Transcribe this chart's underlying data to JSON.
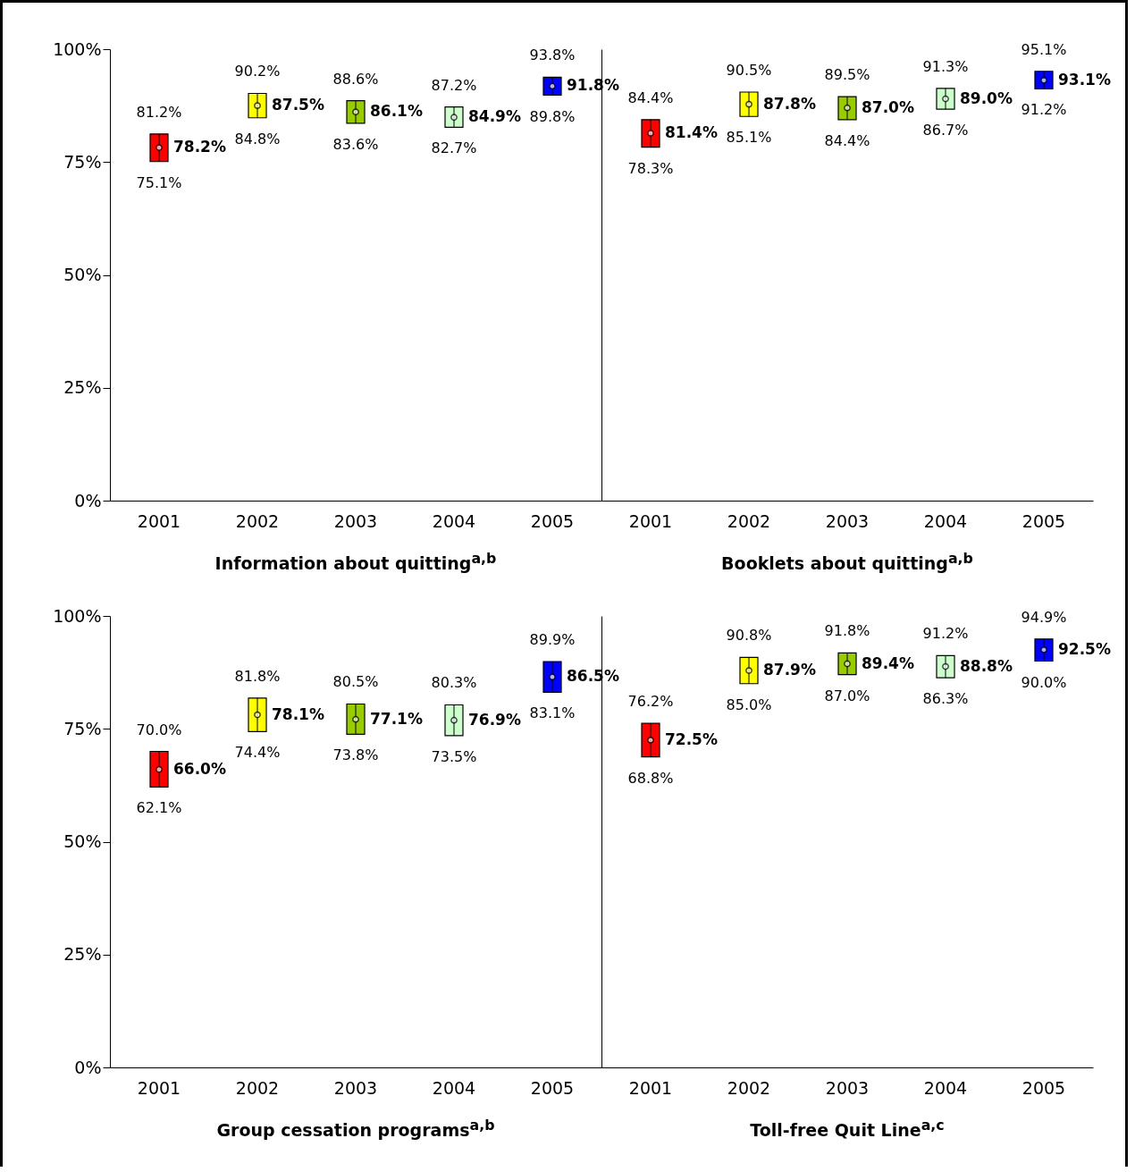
{
  "chart_data": [
    {
      "type": "scatter",
      "categories": [
        "2001",
        "2002",
        "2003",
        "2004",
        "2005"
      ],
      "xlabel": "Information about quitting$^{a,b}$",
      "ylim": [
        0,
        100
      ],
      "yticks": [
        {
          "value": 0,
          "label": "0%"
        },
        {
          "value": 25,
          "label": "25%"
        },
        {
          "value": 50,
          "label": "50%"
        },
        {
          "value": 75,
          "label": "75%"
        },
        {
          "value": 100,
          "label": "100%"
        }
      ],
      "grid": false,
      "series": [
        {
          "colors": [
            "#ff0000",
            "#ffff00",
            "#99cc00",
            "#ccffcc",
            "#0000ff"
          ],
          "values": [
            78.2,
            87.5,
            86.1,
            84.9,
            91.8
          ],
          "errors": [
            [
              75.1,
              81.2
            ],
            [
              84.8,
              90.2
            ],
            [
              83.6,
              88.6
            ],
            [
              82.7,
              87.2
            ],
            [
              89.8,
              93.8
            ]
          ],
          "value_labels": [
            "78.2%",
            "87.5%",
            "86.1%",
            "84.9%",
            "91.8%"
          ]
        }
      ],
      "annotations": [
        {
          "text": "81.2%",
          "x": "2001",
          "y": 81.2
        },
        {
          "text": "75.1%",
          "x": "2001",
          "y": 75.1
        },
        {
          "text": "90.2%",
          "x": "2002",
          "y": 90.2
        },
        {
          "text": "84.8%",
          "x": "2002",
          "y": 84.8
        },
        {
          "text": "88.6%",
          "x": "2003",
          "y": 88.6
        },
        {
          "text": "83.6%",
          "x": "2003",
          "y": 83.6
        },
        {
          "text": "87.2%",
          "x": "2004",
          "y": 87.2
        },
        {
          "text": "82.7%",
          "x": "2004",
          "y": 82.7
        },
        {
          "text": "93.8%",
          "x": "2005",
          "y": 93.8
        },
        {
          "text": "89.8%",
          "x": "2005",
          "y": 89.8
        }
      ]
    },
    {
      "type": "scatter",
      "categories": [
        "2001",
        "2002",
        "2003",
        "2004",
        "2005"
      ],
      "xlabel": "Booklets about quitting$^{a,b}$",
      "ylim": [
        0,
        100
      ],
      "tick_labels": "x",
      "grid": false,
      "series": [
        {
          "colors": [
            "#ff0000",
            "#ffff00",
            "#99cc00",
            "#ccffcc",
            "#0000ff"
          ],
          "values": [
            81.4,
            87.8,
            87.0,
            89.0,
            93.1
          ],
          "errors": [
            [
              78.3,
              84.4
            ],
            [
              85.1,
              90.5
            ],
            [
              84.4,
              89.5
            ],
            [
              86.7,
              91.3
            ],
            [
              91.2,
              95.1
            ]
          ],
          "value_labels": [
            "81.4%",
            "87.8%",
            "87.0%",
            "89.0%",
            "93.1%"
          ]
        }
      ],
      "annotations": [
        {
          "text": "84.4%",
          "x": "2001",
          "y": 84.4
        },
        {
          "text": "78.3%",
          "x": "2001",
          "y": 78.3
        },
        {
          "text": "90.5%",
          "x": "2002",
          "y": 90.5
        },
        {
          "text": "85.1%",
          "x": "2002",
          "y": 85.1
        },
        {
          "text": "89.5%",
          "x": "2003",
          "y": 89.5
        },
        {
          "text": "84.4%",
          "x": "2003",
          "y": 84.4
        },
        {
          "text": "91.3%",
          "x": "2004",
          "y": 91.3
        },
        {
          "text": "86.7%",
          "x": "2004",
          "y": 86.7
        },
        {
          "text": "95.1%",
          "x": "2005",
          "y": 95.1
        },
        {
          "text": "91.2%",
          "x": "2005",
          "y": 91.2
        }
      ]
    },
    {
      "type": "scatter",
      "categories": [
        "2001",
        "2002",
        "2003",
        "2004",
        "2005"
      ],
      "xlabel": "Group cessation programs$^{a,b}$",
      "ylim": [
        0,
        100
      ],
      "yticks": [
        {
          "value": 0,
          "label": "0%"
        },
        {
          "value": 25,
          "label": "25%"
        },
        {
          "value": 50,
          "label": "50%"
        },
        {
          "value": 75,
          "label": "75%"
        },
        {
          "value": 100,
          "label": "100%"
        }
      ],
      "grid": false,
      "series": [
        {
          "colors": [
            "#ff0000",
            "#ffff00",
            "#99cc00",
            "#ccffcc",
            "#0000ff"
          ],
          "values": [
            66.0,
            78.1,
            77.1,
            76.9,
            86.5
          ],
          "errors": [
            [
              62.1,
              70.0
            ],
            [
              74.4,
              81.8
            ],
            [
              73.8,
              80.5
            ],
            [
              73.5,
              80.3
            ],
            [
              83.1,
              89.9
            ]
          ],
          "value_labels": [
            "66.0%",
            "78.1%",
            "77.1%",
            "76.9%",
            "86.5%"
          ]
        }
      ],
      "annotations": [
        {
          "text": "70.0%",
          "x": "2001",
          "y": 70.0
        },
        {
          "text": "62.1%",
          "x": "2001",
          "y": 62.1
        },
        {
          "text": "81.8%",
          "x": "2002",
          "y": 81.8
        },
        {
          "text": "74.4%",
          "x": "2002",
          "y": 74.4
        },
        {
          "text": "80.5%",
          "x": "2003",
          "y": 80.5
        },
        {
          "text": "73.8%",
          "x": "2003",
          "y": 73.8
        },
        {
          "text": "80.3%",
          "x": "2004",
          "y": 80.3
        },
        {
          "text": "73.5%",
          "x": "2004",
          "y": 73.5
        },
        {
          "text": "89.9%",
          "x": "2005",
          "y": 89.9
        },
        {
          "text": "83.1%",
          "x": "2005",
          "y": 83.1
        }
      ]
    },
    {
      "type": "scatter",
      "categories": [
        "2001",
        "2002",
        "2003",
        "2004",
        "2005"
      ],
      "xlabel": "Toll-free Quit Line$^{a,c}$",
      "ylim": [
        0,
        100
      ],
      "tick_labels": "x",
      "grid": false,
      "series": [
        {
          "colors": [
            "#ff0000",
            "#ffff00",
            "#99cc00",
            "#ccffcc",
            "#0000ff"
          ],
          "values": [
            72.5,
            87.9,
            89.4,
            88.8,
            92.5
          ],
          "errors": [
            [
              68.8,
              76.2
            ],
            [
              85.0,
              90.8
            ],
            [
              87.0,
              91.8
            ],
            [
              86.3,
              91.2
            ],
            [
              90.0,
              94.9
            ]
          ],
          "value_labels": [
            "72.5%",
            "87.9%",
            "89.4%",
            "88.8%",
            "92.5%"
          ]
        }
      ],
      "annotations": [
        {
          "text": "76.2%",
          "x": "2001",
          "y": 76.2
        },
        {
          "text": "68.8%",
          "x": "2001",
          "y": 68.8
        },
        {
          "text": "90.8%",
          "x": "2002",
          "y": 90.8
        },
        {
          "text": "85.0%",
          "x": "2002",
          "y": 85.0
        },
        {
          "text": "91.8%",
          "x": "2003",
          "y": 91.8
        },
        {
          "text": "87.0%",
          "x": "2003",
          "y": 87.0
        },
        {
          "text": "91.2%",
          "x": "2004",
          "y": 91.2
        },
        {
          "text": "86.3%",
          "x": "2004",
          "y": 86.3
        },
        {
          "text": "94.9%",
          "x": "2005",
          "y": 94.9
        },
        {
          "text": "90.0%",
          "x": "2005",
          "y": 90.0
        }
      ]
    }
  ]
}
